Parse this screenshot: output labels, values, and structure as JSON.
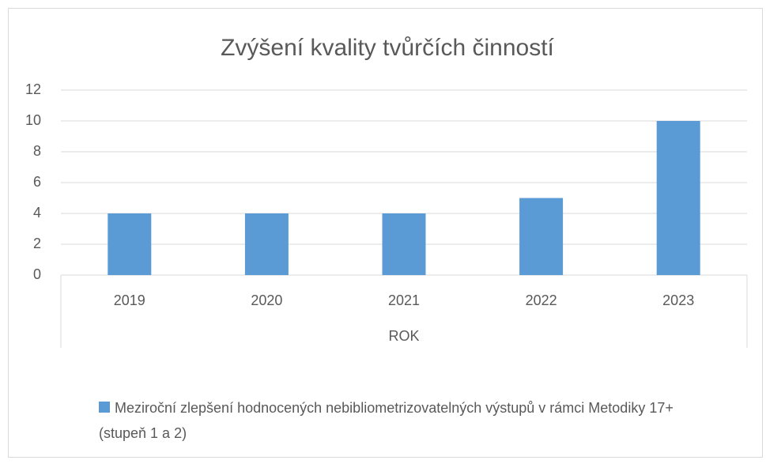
{
  "chart_data": {
    "type": "bar",
    "title": "Zvýšení kvality tvůrčích činností",
    "x_label": "ROK",
    "categories": [
      "2019",
      "2020",
      "2021",
      "2022",
      "2023"
    ],
    "series": [
      {
        "name": "Meziroční zlepšení hodnocených nebibliometrizovatelných výstupů v rámci Metodiky 17+ (stupeň 1 a 2)",
        "color": "#5b9bd5",
        "values": [
          4,
          4,
          4,
          5,
          10
        ]
      }
    ],
    "ylim": [
      0,
      12
    ],
    "yticks": [
      0,
      2,
      4,
      6,
      8,
      10,
      12
    ],
    "grid": true,
    "legend": "bottom"
  }
}
